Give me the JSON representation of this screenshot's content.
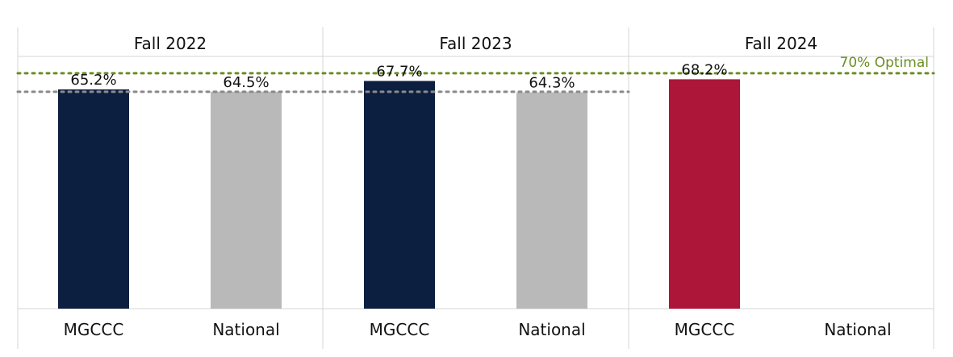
{
  "chart_data": {
    "type": "bar",
    "groups": [
      "Fall 2022",
      "Fall 2023",
      "Fall 2024"
    ],
    "categories": [
      "MGCCC",
      "National"
    ],
    "values": [
      [
        65.2,
        64.5
      ],
      [
        67.7,
        64.3
      ],
      [
        68.2,
        null
      ]
    ],
    "data_labels": [
      [
        "65.2%",
        "64.5%"
      ],
      [
        "67.7%",
        "64.3%"
      ],
      [
        "68.2%",
        ""
      ]
    ],
    "ylim": [
      0,
      75
    ],
    "reference_lines": [
      {
        "label": "70% Optimal",
        "value": 70,
        "color": "#6b8e23",
        "style": "dotted",
        "groups": [
          0,
          1,
          2
        ]
      },
      {
        "label": "",
        "value": 64.5,
        "color": "#8a8a8a",
        "style": "dotted",
        "groups": [
          0,
          1
        ]
      }
    ],
    "colors": {
      "mgccc": "#0c1f40",
      "national": "#b9b9b9",
      "highlight": "#ad1539",
      "optimal": "#6b8e23"
    },
    "highlight_group": 2
  }
}
